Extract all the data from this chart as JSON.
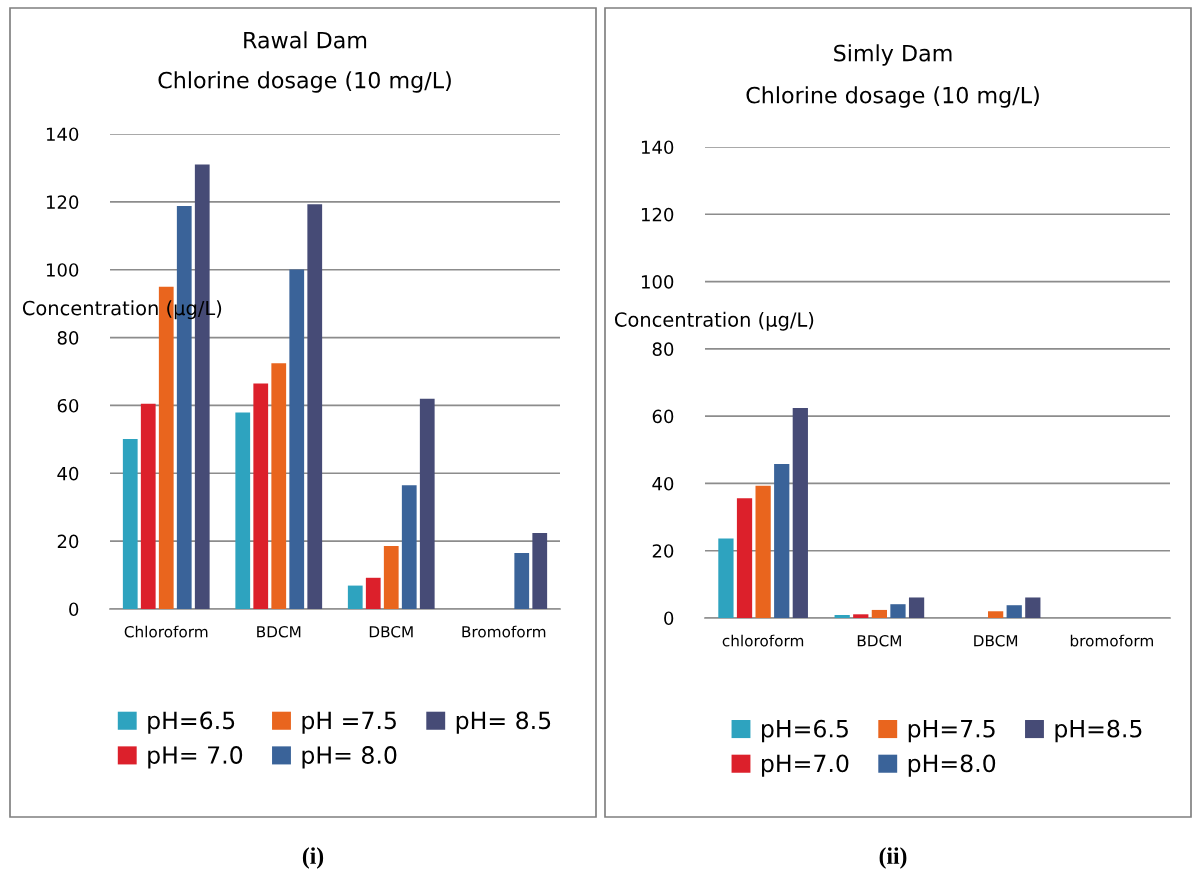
{
  "chart_data": [
    {
      "type": "bar",
      "title": "Rawal Dam",
      "subtitle": "Chlorine dosage (10 mg/L)",
      "ylabel": "Concentration (µg/L)",
      "categories": [
        "Chloroform",
        "BDCM",
        "DBCM",
        "Bromoform"
      ],
      "series": [
        {
          "name": "pH=6.5",
          "color": "#2ea3bf",
          "values": [
            50.1,
            57.9,
            6.9,
            null
          ]
        },
        {
          "name": "pH= 7.0",
          "color": "#dc202b",
          "values": [
            60.5,
            66.5,
            9.2,
            null
          ]
        },
        {
          "name": "pH =7.5",
          "color": "#e9651e",
          "values": [
            95,
            72.4,
            18.6,
            null
          ]
        },
        {
          "name": "pH= 8.0",
          "color": "#3a6399",
          "values": [
            118.8,
            100.1,
            36.5,
            16.5
          ]
        },
        {
          "name": "pH= 8.5",
          "color": "#464b76",
          "values": [
            131,
            119.3,
            62,
            22.4
          ]
        }
      ],
      "ylim": [
        0,
        140
      ],
      "yticks": [
        0,
        20,
        40,
        60,
        80,
        100,
        120,
        140
      ],
      "grid": "y",
      "legend": "bottom",
      "annotations": [
        "(i)"
      ]
    },
    {
      "type": "bar",
      "title": "Simly Dam",
      "subtitle": "Chlorine dosage (10 mg/L)",
      "ylabel": "Concentration (µg/L)",
      "categories": [
        "chloroform",
        "BDCM",
        "DBCM",
        "bromoform"
      ],
      "series": [
        {
          "name": "pH=6.5",
          "color": "#2ea3bf",
          "values": [
            23.6,
            0.9,
            null,
            null
          ]
        },
        {
          "name": "pH=7.0",
          "color": "#dc202b",
          "values": [
            35.6,
            1.1,
            null,
            null
          ]
        },
        {
          "name": "pH=7.5",
          "color": "#e9651e",
          "values": [
            39.3,
            2.4,
            2.0,
            null
          ]
        },
        {
          "name": "pH=8.0",
          "color": "#3a6399",
          "values": [
            45.8,
            4.1,
            3.8,
            null
          ]
        },
        {
          "name": "pH=8.5",
          "color": "#464b76",
          "values": [
            62.4,
            6.1,
            6.1,
            null
          ]
        }
      ],
      "ylim": [
        0,
        140
      ],
      "yticks": [
        0,
        20,
        40,
        60,
        80,
        100,
        120,
        140
      ],
      "grid": "y",
      "legend": "bottom",
      "annotations": [
        "(ii)"
      ]
    }
  ]
}
